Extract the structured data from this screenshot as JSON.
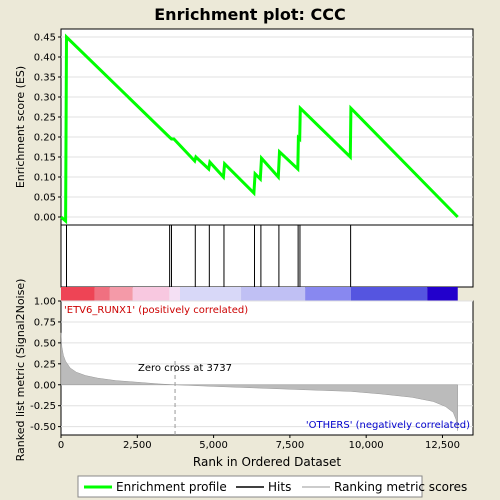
{
  "chart_data": [
    {
      "type": "line",
      "title": "Enrichment plot: CCC",
      "ylabel": "Enrichment score (ES)",
      "xlim": [
        0,
        13500
      ],
      "ylim": [
        -0.02,
        0.47
      ],
      "yticks": [
        "0.00",
        "0.05",
        "0.10",
        "0.15",
        "0.20",
        "0.25",
        "0.30",
        "0.35",
        "0.40",
        "0.45"
      ],
      "series": [
        {
          "name": "Enrichment profile",
          "color": "#00ff00",
          "points": [
            [
              0,
              0.0
            ],
            [
              150,
              -0.01
            ],
            [
              180,
              0.45
            ],
            [
              3550,
              0.2
            ],
            [
              3620,
              0.195
            ],
            [
              3700,
              0.195
            ],
            [
              4380,
              0.14
            ],
            [
              4420,
              0.15
            ],
            [
              4840,
              0.12
            ],
            [
              4880,
              0.137
            ],
            [
              5320,
              0.1
            ],
            [
              5360,
              0.133
            ],
            [
              6320,
              0.06
            ],
            [
              6360,
              0.108
            ],
            [
              6530,
              0.095
            ],
            [
              6570,
              0.147
            ],
            [
              7120,
              0.1
            ],
            [
              7160,
              0.163
            ],
            [
              7760,
              0.12
            ],
            [
              7780,
              0.198
            ],
            [
              7820,
              0.195
            ],
            [
              7840,
              0.272
            ],
            [
              9480,
              0.15
            ],
            [
              9500,
              0.272
            ],
            [
              13000,
              0.0
            ]
          ]
        }
      ],
      "hits": [
        180,
        3560,
        3620,
        4400,
        4860,
        5340,
        6340,
        6550,
        7140,
        7770,
        7830,
        9490
      ]
    },
    {
      "type": "area",
      "ylabel": "Ranked list metric (Signal2Noise)",
      "xlabel": "Rank in Ordered Dataset",
      "xlim": [
        0,
        13500
      ],
      "ylim": [
        -0.6,
        1.0
      ],
      "yticks": [
        "-0.50",
        "-0.25",
        "0.00",
        "0.25",
        "0.50",
        "0.75",
        "1.00"
      ],
      "xticks": [
        "0",
        "2,500",
        "5,000",
        "7,500",
        "10,000",
        "12,500"
      ],
      "zero_cross_label": "Zero cross at 3737",
      "zero_cross": 3737,
      "positive_label": "'ETV6_RUNX1' (positively correlated)",
      "negative_label": "'OTHERS' (negatively correlated)",
      "points": [
        [
          0,
          0.62
        ],
        [
          30,
          0.45
        ],
        [
          80,
          0.35
        ],
        [
          150,
          0.28
        ],
        [
          300,
          0.2
        ],
        [
          500,
          0.15
        ],
        [
          800,
          0.11
        ],
        [
          1200,
          0.08
        ],
        [
          1800,
          0.05
        ],
        [
          2500,
          0.03
        ],
        [
          3200,
          0.01
        ],
        [
          3737,
          0.0
        ],
        [
          5000,
          -0.02
        ],
        [
          6500,
          -0.04
        ],
        [
          8000,
          -0.06
        ],
        [
          9500,
          -0.08
        ],
        [
          10500,
          -0.11
        ],
        [
          11500,
          -0.15
        ],
        [
          12200,
          -0.2
        ],
        [
          12600,
          -0.26
        ],
        [
          12850,
          -0.33
        ],
        [
          12950,
          -0.42
        ],
        [
          13000,
          -0.55
        ]
      ]
    }
  ],
  "legend": [
    {
      "name": "Enrichment profile",
      "color": "#00ff00"
    },
    {
      "name": "Hits",
      "color": "#000000"
    },
    {
      "name": "Ranking metric scores",
      "color": "#bbbbbb"
    }
  ],
  "colorbar": [
    {
      "from": 0,
      "to": 1100,
      "color": "#ee4455"
    },
    {
      "from": 1100,
      "to": 1600,
      "color": "#f07080"
    },
    {
      "from": 1600,
      "to": 2350,
      "color": "#f49aa8"
    },
    {
      "from": 2350,
      "to": 3550,
      "color": "#f8c8e0"
    },
    {
      "from": 3550,
      "to": 3900,
      "color": "#f4e0f4"
    },
    {
      "from": 3900,
      "to": 5900,
      "color": "#d8d8f8"
    },
    {
      "from": 5900,
      "to": 8000,
      "color": "#c0c0f4"
    },
    {
      "from": 8000,
      "to": 9500,
      "color": "#8888f0"
    },
    {
      "from": 9500,
      "to": 12000,
      "color": "#5555e0"
    },
    {
      "from": 12000,
      "to": 13000,
      "color": "#2200cc"
    }
  ]
}
